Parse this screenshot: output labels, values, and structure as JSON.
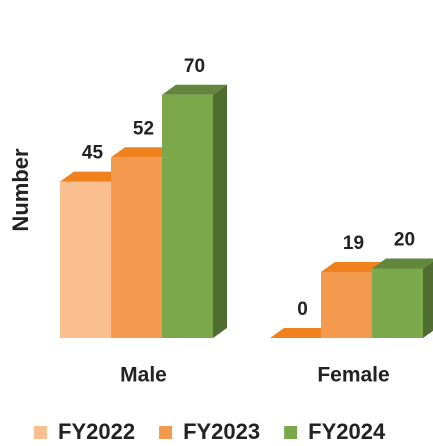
{
  "chart_data": {
    "type": "bar3d",
    "y_label": "Number",
    "categories": [
      "Male",
      "Female"
    ],
    "series": [
      {
        "name": "FY2022",
        "color": "#f9bf8f",
        "values": [
          45,
          0
        ]
      },
      {
        "name": "FY2023",
        "color": "#f39a4f",
        "values": [
          52,
          19
        ]
      },
      {
        "name": "FY2024",
        "color": "#7aa84a",
        "values": [
          70,
          20
        ]
      }
    ],
    "ylim": [
      0,
      80
    ],
    "legend": "bottom"
  }
}
